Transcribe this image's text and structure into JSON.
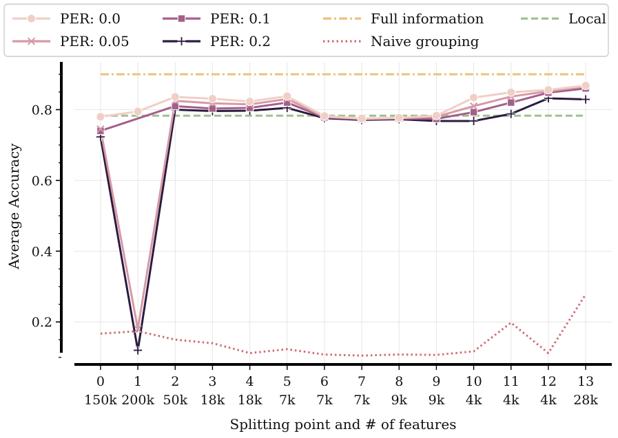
{
  "chart_data": {
    "type": "line",
    "title": "",
    "xlabel": "Splitting point and # of features",
    "ylabel": "Average Accuracy",
    "x": [
      0,
      1,
      2,
      3,
      4,
      5,
      6,
      7,
      8,
      9,
      10,
      11,
      12,
      13
    ],
    "x_tick_labels": [
      "0",
      "1",
      "2",
      "3",
      "4",
      "5",
      "6",
      "7",
      "8",
      "9",
      "10",
      "11",
      "12",
      "13"
    ],
    "x_tick_sublabels": [
      "150k",
      "200k",
      "50k",
      "18k",
      "18k",
      "7k",
      "7k",
      "7k",
      "9k",
      "9k",
      "4k",
      "4k",
      "4k",
      "28k"
    ],
    "y_ticks": [
      0.2,
      0.4,
      0.6,
      0.8
    ],
    "y_tick_labels": [
      "0.2",
      "0.4",
      "0.6",
      "0.8"
    ],
    "xlim": [
      -0.7,
      13.7
    ],
    "ylim": [
      0.08,
      0.935
    ],
    "grid": true,
    "legend_position": "top",
    "series": [
      {
        "name": "PER: 0.0",
        "color": "#efcfc6",
        "marker": "circle",
        "style": "solid",
        "values": [
          0.78,
          0.795,
          0.836,
          0.831,
          0.823,
          0.838,
          0.782,
          0.775,
          0.777,
          0.783,
          0.834,
          0.849,
          0.856,
          0.868
        ]
      },
      {
        "name": "PER: 0.05",
        "color": "#d699a6",
        "marker": "x",
        "style": "solid",
        "values": [
          0.745,
          0.18,
          0.825,
          0.818,
          0.815,
          0.83,
          0.78,
          0.774,
          0.776,
          0.78,
          0.81,
          0.837,
          0.852,
          0.866
        ]
      },
      {
        "name": "PER: 0.1",
        "color": "#a45f8b",
        "marker": "square",
        "style": "solid",
        "values": [
          0.74,
          null,
          0.81,
          0.803,
          0.805,
          0.82,
          0.778,
          0.773,
          0.775,
          0.774,
          0.793,
          0.82,
          0.848,
          0.86
        ]
      },
      {
        "name": "PER: 0.2",
        "color": "#2b1b3f",
        "marker": "plus",
        "style": "solid",
        "values": [
          0.723,
          0.12,
          0.8,
          0.796,
          0.797,
          0.805,
          0.776,
          0.771,
          0.773,
          0.768,
          0.768,
          0.788,
          0.832,
          0.829
        ]
      },
      {
        "name": "Full information",
        "color": "#eac27e",
        "marker": "none",
        "style": "dashdot",
        "values": [
          0.9,
          0.9,
          0.9,
          0.9,
          0.9,
          0.9,
          0.9,
          0.9,
          0.9,
          0.9,
          0.9,
          0.9,
          0.9,
          0.9
        ]
      },
      {
        "name": "Naive grouping",
        "color": "#cf6c75",
        "marker": "none",
        "style": "dotted",
        "values": [
          0.167,
          0.174,
          0.15,
          0.14,
          0.112,
          0.123,
          0.108,
          0.105,
          0.108,
          0.107,
          0.117,
          0.198,
          0.112,
          0.278
        ]
      },
      {
        "name": "Local",
        "color": "#9fc08d",
        "marker": "none",
        "style": "dashed",
        "values": [
          0.783,
          0.783,
          0.783,
          0.783,
          0.783,
          0.783,
          0.783,
          0.783,
          0.783,
          0.783,
          0.783,
          0.783,
          0.783,
          0.783
        ]
      }
    ]
  }
}
